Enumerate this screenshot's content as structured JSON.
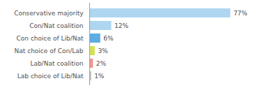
{
  "chart_data": {
    "type": "bar",
    "orientation": "horizontal",
    "categories": [
      "Conservative majority",
      "Con/Nat coalition",
      "Con choice of Lib/Nat",
      "Nat choice of Con/Lab",
      "Lab/Nat coalition",
      "Lab choice of Lib/Nat"
    ],
    "values": [
      77,
      12,
      6,
      3,
      2,
      1
    ],
    "value_labels": [
      "77%",
      "12%",
      "6%",
      "3%",
      "2%",
      "1%"
    ],
    "colors": [
      "#aed6f1",
      "#aed6f1",
      "#5dade2",
      "#d4e157",
      "#f1948a",
      "#bdbdbd"
    ],
    "xlim": [
      0,
      88
    ],
    "data_labels": true,
    "tick_labels": "y",
    "grid": false
  }
}
